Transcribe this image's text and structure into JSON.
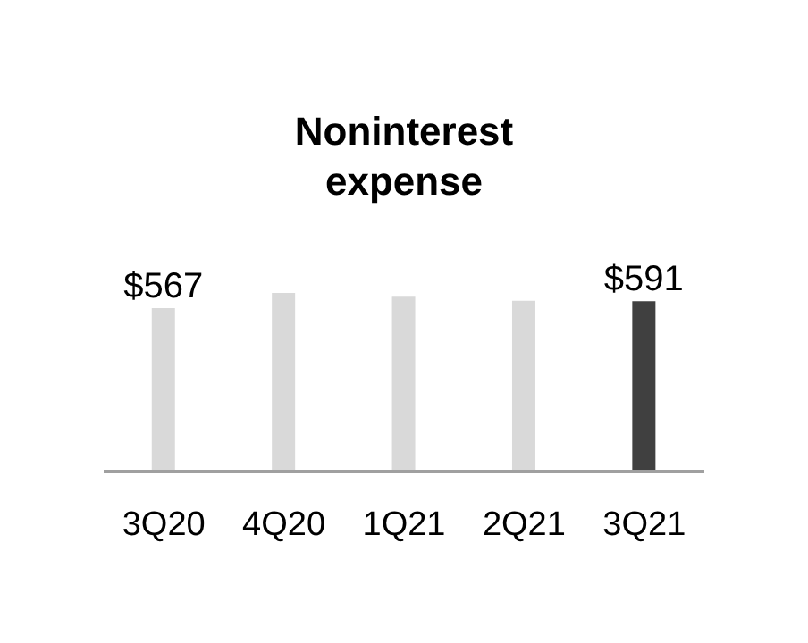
{
  "chart_data": {
    "type": "bar",
    "title": "Noninterest expense",
    "categories": [
      "3Q20",
      "4Q20",
      "1Q21",
      "2Q21",
      "3Q21"
    ],
    "values": [
      567,
      620,
      607,
      593,
      591
    ],
    "colors": [
      "#d9d9d9",
      "#d9d9d9",
      "#d9d9d9",
      "#d9d9d9",
      "#404040"
    ],
    "value_labels": [
      "$567",
      null,
      null,
      null,
      "$591"
    ]
  }
}
